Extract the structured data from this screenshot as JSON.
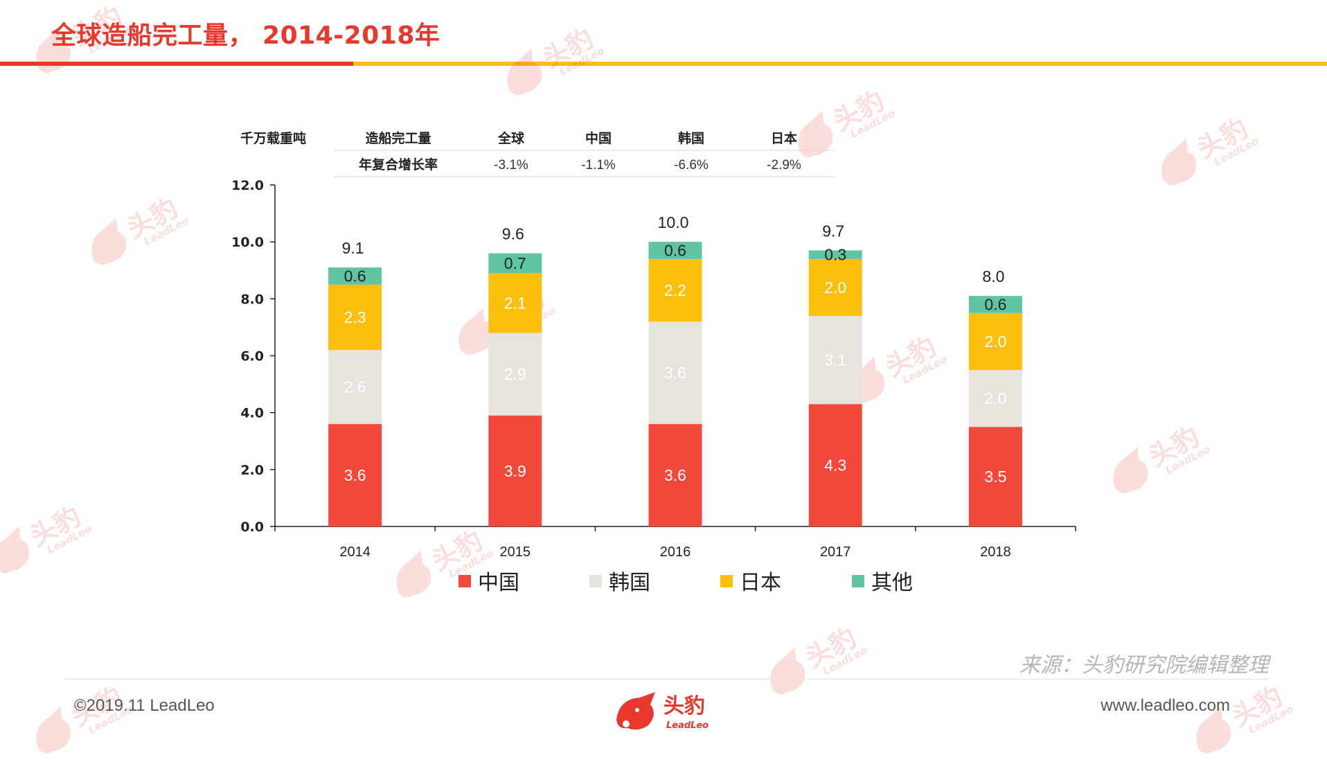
{
  "page": {
    "title": "全球造船完工量， 2014-2018年",
    "source": "来源：头豹研究院编辑整理",
    "copyright": "©2019.11 LeadLeo",
    "website": "www.leadleo.com"
  },
  "logo": {
    "cn": "头豹",
    "en": "LeadLeo"
  },
  "watermark": {
    "cn": "头豹",
    "en": "LeadLeo"
  },
  "colors": {
    "brand_red": "#e8372c",
    "brand_yellow": "#f5bf1a"
  },
  "chart_data": {
    "type": "bar",
    "stacked": true,
    "ylabel": "千万载重吨",
    "ylim": [
      0,
      12
    ],
    "yticks": [
      "0.0",
      "2.0",
      "4.0",
      "6.0",
      "8.0",
      "10.0",
      "12.0"
    ],
    "categories": [
      "2014",
      "2015",
      "2016",
      "2017",
      "2018"
    ],
    "series": [
      {
        "name": "中国",
        "color": "#f2493c",
        "label_color": "#ffffff",
        "values": [
          3.6,
          3.9,
          3.6,
          4.3,
          3.5
        ]
      },
      {
        "name": "韩国",
        "color": "#e6e4dc",
        "label_color": "#ffffff",
        "values": [
          2.6,
          2.9,
          3.6,
          3.1,
          2.0
        ]
      },
      {
        "name": "日本",
        "color": "#fbbf0c",
        "label_color": "#ffffff",
        "values": [
          2.3,
          2.1,
          2.2,
          2.0,
          2.0
        ]
      },
      {
        "name": "其他",
        "color": "#5ec4a4",
        "label_color": "#222222",
        "values": [
          0.6,
          0.7,
          0.6,
          0.3,
          0.6
        ]
      }
    ],
    "totals": [
      9.1,
      9.6,
      10.0,
      9.7,
      8.0
    ],
    "legend": "bottom",
    "grid": false,
    "cagr_table": {
      "header_label": "造船完工量",
      "row_label": "年复合增长率",
      "columns": [
        "全球",
        "中国",
        "韩国",
        "日本"
      ],
      "values": [
        "-3.1%",
        "-1.1%",
        "-6.6%",
        "-2.9%"
      ]
    }
  }
}
